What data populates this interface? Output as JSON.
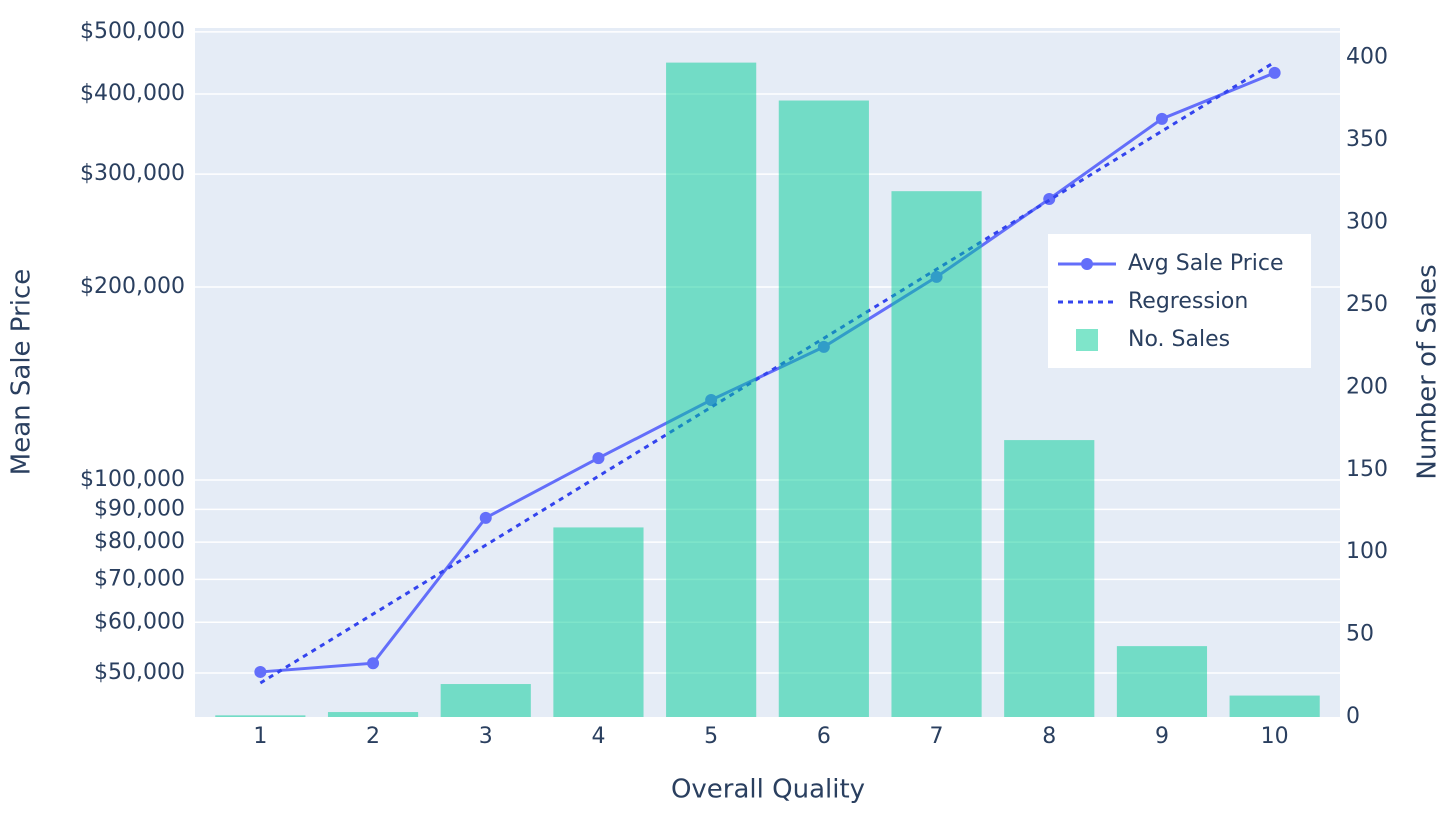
{
  "chart_data": {
    "type": "bar-line",
    "x_label": "Overall Quality",
    "y_label": "Mean Sale Price",
    "y2_label": "Number of Sales",
    "x": [
      1,
      2,
      3,
      4,
      5,
      6,
      7,
      8,
      9,
      10
    ],
    "xlim": [
      0.5,
      10.5
    ],
    "xticks": [
      1,
      2,
      3,
      4,
      5,
      6,
      7,
      8,
      9,
      10
    ],
    "ylim": [
      42700,
      507000
    ],
    "y_scale": "log",
    "yticks": [
      {
        "value": 50000,
        "label": "$50,000"
      },
      {
        "value": 60000,
        "label": "$60,000"
      },
      {
        "value": 70000,
        "label": "$70,000"
      },
      {
        "value": 80000,
        "label": "$80,000"
      },
      {
        "value": 90000,
        "label": "$90,000"
      },
      {
        "value": 100000,
        "label": "$100,000"
      },
      {
        "value": 200000,
        "label": "$200,000"
      },
      {
        "value": 300000,
        "label": "$300,000"
      },
      {
        "value": 400000,
        "label": "$400,000"
      },
      {
        "value": 500000,
        "label": "$500,000"
      }
    ],
    "y2lim": [
      0,
      418
    ],
    "y2ticks": [
      0,
      50,
      100,
      150,
      200,
      250,
      300,
      350,
      400
    ],
    "grid": true,
    "legend_position": "right",
    "series": [
      {
        "name": "Avg Sale Price",
        "type": "line",
        "color": "#636efa",
        "marker": true,
        "values": [
          50200,
          51800,
          87300,
          108200,
          133300,
          161300,
          207400,
          274400,
          365900,
          431500
        ]
      },
      {
        "name": "Regression",
        "type": "line",
        "color": "#3344ee",
        "dash": "dot",
        "values": [
          48250,
          61800,
          79150,
          101400,
          129900,
          166400,
          213200,
          273200,
          350100,
          448500
        ]
      },
      {
        "name": "No. Sales",
        "type": "bar",
        "axis": "y2",
        "color": "#00cc96",
        "opacity": 0.5,
        "values": [
          1,
          3,
          20,
          115,
          397,
          374,
          319,
          168,
          43,
          13
        ]
      }
    ]
  }
}
